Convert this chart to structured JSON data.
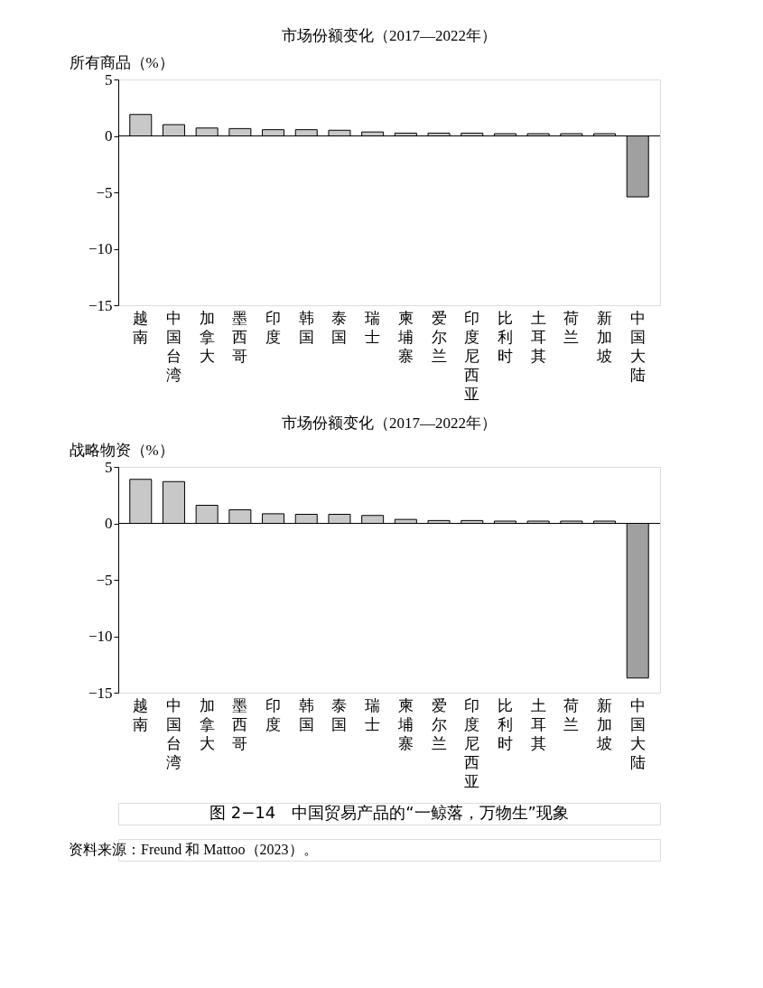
{
  "chart_data": [
    {
      "type": "bar",
      "title": "市场份额变化（2017—2022年）",
      "ylabel": "所有商品（%）",
      "categories": [
        "越南",
        "中国台湾",
        "加拿大",
        "墨西哥",
        "印度",
        "韩国",
        "泰国",
        "瑞士",
        "柬埔寨",
        "爱尔兰",
        "印度尼西亚",
        "比利时",
        "土耳其",
        "荷兰",
        "新加坡",
        "中国大陆"
      ],
      "values": [
        1.9,
        1.0,
        0.7,
        0.65,
        0.55,
        0.55,
        0.5,
        0.35,
        0.25,
        0.25,
        0.25,
        0.2,
        0.2,
        0.2,
        0.2,
        -5.4
      ],
      "colors": [
        "#c8c8c8",
        "#c8c8c8",
        "#c8c8c8",
        "#c8c8c8",
        "#c8c8c8",
        "#c8c8c8",
        "#c8c8c8",
        "#c8c8c8",
        "#c8c8c8",
        "#c8c8c8",
        "#c8c8c8",
        "#c8c8c8",
        "#c8c8c8",
        "#c8c8c8",
        "#c8c8c8",
        "#a0a0a0"
      ],
      "ylim": [
        -15,
        5
      ],
      "yticks": [
        {
          "value": -15,
          "label": "−15"
        },
        {
          "value": -10,
          "label": "−10"
        },
        {
          "value": -5,
          "label": "−5"
        },
        0,
        5
      ],
      "ref_lines": [
        {
          "axis": "y",
          "value": 0,
          "color": "#000000"
        }
      ],
      "grid": false
    },
    {
      "type": "bar",
      "title": "市场份额变化（2017—2022年）",
      "ylabel": "战略物资（%）",
      "categories": [
        "越南",
        "中国台湾",
        "加拿大",
        "墨西哥",
        "印度",
        "韩国",
        "泰国",
        "瑞士",
        "柬埔寨",
        "爱尔兰",
        "印度尼西亚",
        "比利时",
        "土耳其",
        "荷兰",
        "新加坡",
        "中国大陆"
      ],
      "values": [
        3.9,
        3.7,
        1.6,
        1.2,
        0.85,
        0.8,
        0.8,
        0.7,
        0.35,
        0.25,
        0.25,
        0.2,
        0.2,
        0.2,
        0.2,
        -13.7
      ],
      "colors": [
        "#c8c8c8",
        "#c8c8c8",
        "#c8c8c8",
        "#c8c8c8",
        "#c8c8c8",
        "#c8c8c8",
        "#c8c8c8",
        "#c8c8c8",
        "#c8c8c8",
        "#c8c8c8",
        "#c8c8c8",
        "#c8c8c8",
        "#c8c8c8",
        "#c8c8c8",
        "#c8c8c8",
        "#a0a0a0"
      ],
      "ylim": [
        -15,
        5
      ],
      "yticks": [
        {
          "value": -15,
          "label": "−15"
        },
        {
          "value": -10,
          "label": "−10"
        },
        {
          "value": -5,
          "label": "−5"
        },
        0,
        5
      ],
      "ref_lines": [
        {
          "axis": "y",
          "value": 0,
          "color": "#000000"
        }
      ],
      "grid": false,
      "annotations": [
        "图 2−14　中国贸易产品的“一鲸落，万物生”现象",
        "资料来源：Freund 和 Mattoo（2023）。"
      ]
    }
  ]
}
